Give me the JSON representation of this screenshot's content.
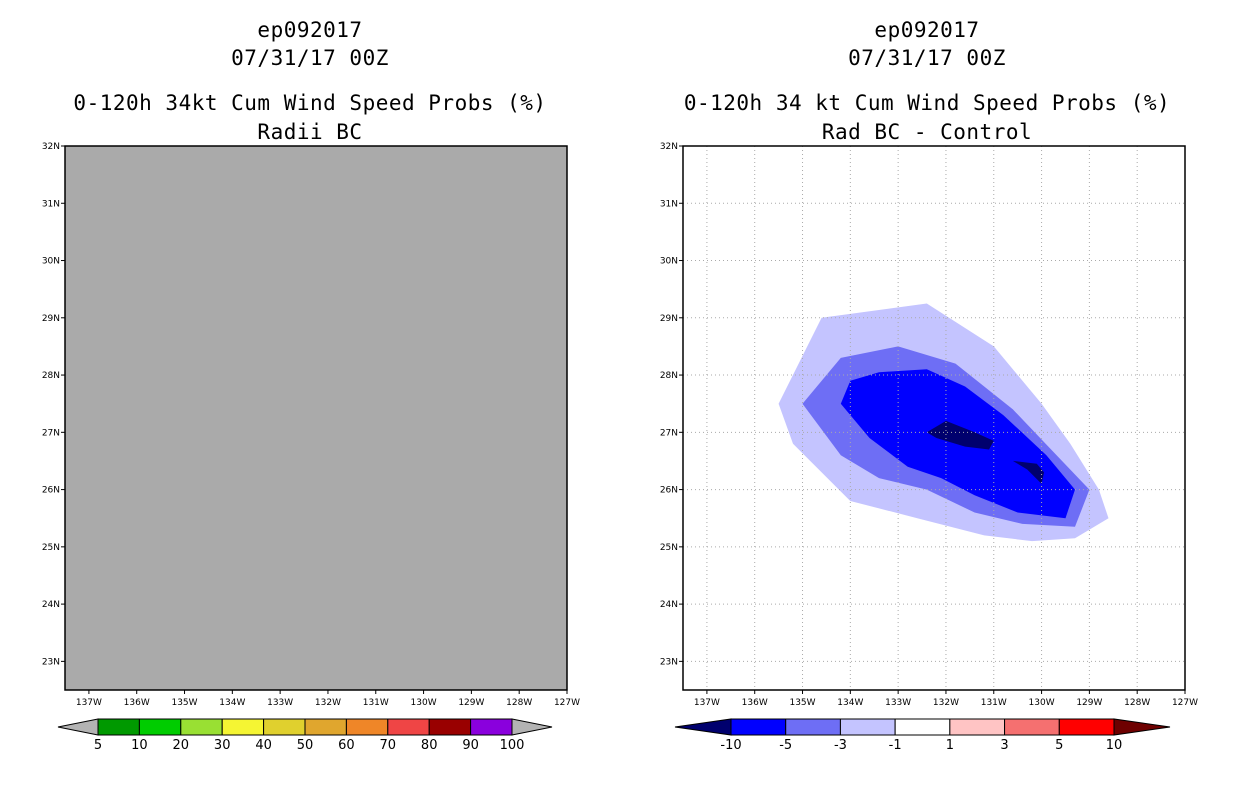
{
  "charts": [
    {
      "storm_id": "ep092017",
      "datetime": "07/31/17 00Z",
      "title": "0-120h 34kt Cum Wind Speed Probs (%)",
      "subtitle": "Radii BC",
      "background": "#aaaaaa"
    },
    {
      "storm_id": "ep092017",
      "datetime": "07/31/17 00Z",
      "title": "0-120h 34 kt Cum Wind Speed Probs (%)",
      "subtitle": "Rad BC - Control",
      "background": "#ffffff"
    }
  ],
  "chart_data": [
    {
      "type": "heatmap",
      "title": "0-120h 34kt Cum Wind Speed Probs (%)",
      "subtitle": "Radii BC",
      "units": "%",
      "x_ticks": [
        "137W",
        "136W",
        "135W",
        "134W",
        "133W",
        "132W",
        "131W",
        "130W",
        "129W",
        "128W",
        "127W"
      ],
      "y_ticks": [
        "23N",
        "24N",
        "25N",
        "26N",
        "27N",
        "28N",
        "29N",
        "30N",
        "31N",
        "32N"
      ],
      "xlim": [
        -137.5,
        -127
      ],
      "ylim": [
        22.5,
        32
      ],
      "grid": false,
      "field_note": "entire domain undefined (gray)",
      "colorbar": {
        "labels": [
          "5",
          "10",
          "20",
          "30",
          "40",
          "50",
          "60",
          "70",
          "80",
          "90",
          "100"
        ],
        "colors": [
          "#009900",
          "#00cc00",
          "#99e033",
          "#f5f533",
          "#e0d02e",
          "#e0a62e",
          "#ef8628",
          "#ef4545",
          "#990000",
          "#8a00dd"
        ],
        "end_color": "#b3b3b3"
      }
    },
    {
      "type": "heatmap",
      "title": "0-120h 34 kt Cum Wind Speed Probs (%)",
      "subtitle": "Rad BC - Control",
      "units": "%",
      "x_ticks": [
        "137W",
        "136W",
        "135W",
        "134W",
        "133W",
        "132W",
        "131W",
        "130W",
        "129W",
        "128W",
        "127W"
      ],
      "y_ticks": [
        "23N",
        "24N",
        "25N",
        "26N",
        "27N",
        "28N",
        "29N",
        "30N",
        "31N",
        "32N"
      ],
      "xlim": [
        -137.5,
        -127
      ],
      "ylim": [
        22.5,
        32
      ],
      "grid": true,
      "colorbar": {
        "labels": [
          "-10",
          "-5",
          "-3",
          "-1",
          "1",
          "3",
          "5",
          "10"
        ],
        "colors": [
          "#0000ff",
          "#6e6ef5",
          "#c4c4ff",
          "#ffffff",
          "#ffc4c4",
          "#f57070",
          "#ff0000"
        ],
        "low_end_color": "#00006e",
        "high_end_color": "#6e0000"
      },
      "contours": [
        {
          "level": "-1 to -3",
          "color": "#c4c4ff",
          "points": [
            [
              -134.6,
              29.0
            ],
            [
              -132.4,
              29.25
            ],
            [
              -131.0,
              28.5
            ],
            [
              -130.0,
              27.5
            ],
            [
              -129.4,
              26.8
            ],
            [
              -128.8,
              26.0
            ],
            [
              -128.6,
              25.5
            ],
            [
              -129.3,
              25.15
            ],
            [
              -130.2,
              25.1
            ],
            [
              -131.2,
              25.2
            ],
            [
              -132.6,
              25.5
            ],
            [
              -134.0,
              25.8
            ],
            [
              -135.2,
              26.8
            ],
            [
              -135.5,
              27.5
            ]
          ]
        },
        {
          "level": "-3 to -5",
          "color": "#6e6ef5",
          "points": [
            [
              -134.2,
              28.3
            ],
            [
              -133.0,
              28.5
            ],
            [
              -131.8,
              28.2
            ],
            [
              -130.6,
              27.4
            ],
            [
              -129.8,
              26.7
            ],
            [
              -129.0,
              26.0
            ],
            [
              -129.3,
              25.35
            ],
            [
              -130.4,
              25.4
            ],
            [
              -131.4,
              25.6
            ],
            [
              -132.4,
              26.0
            ],
            [
              -133.4,
              26.2
            ],
            [
              -134.2,
              26.6
            ],
            [
              -135.0,
              27.5
            ]
          ]
        },
        {
          "level": "-5 to -10",
          "color": "#0000ff",
          "points": [
            [
              -134.0,
              27.9
            ],
            [
              -133.4,
              28.05
            ],
            [
              -132.4,
              28.1
            ],
            [
              -131.6,
              27.8
            ],
            [
              -130.8,
              27.3
            ],
            [
              -129.9,
              26.6
            ],
            [
              -129.3,
              26.0
            ],
            [
              -129.5,
              25.5
            ],
            [
              -130.5,
              25.6
            ],
            [
              -131.4,
              25.9
            ],
            [
              -132.1,
              26.2
            ],
            [
              -132.8,
              26.4
            ],
            [
              -133.6,
              26.9
            ],
            [
              -134.2,
              27.5
            ]
          ]
        },
        {
          "level": "< -10",
          "color": "#00006e",
          "points": [
            [
              -132.4,
              27.0
            ],
            [
              -132.0,
              27.2
            ],
            [
              -131.4,
              27.0
            ],
            [
              -131.0,
              26.85
            ],
            [
              -131.1,
              26.7
            ],
            [
              -131.6,
              26.75
            ],
            [
              -132.2,
              26.9
            ]
          ]
        },
        {
          "level": "< -10",
          "color": "#00006e",
          "points": [
            [
              -130.6,
              26.5
            ],
            [
              -130.1,
              26.45
            ],
            [
              -129.95,
              26.3
            ],
            [
              -130.0,
              26.1
            ],
            [
              -130.3,
              26.35
            ]
          ]
        }
      ]
    }
  ]
}
